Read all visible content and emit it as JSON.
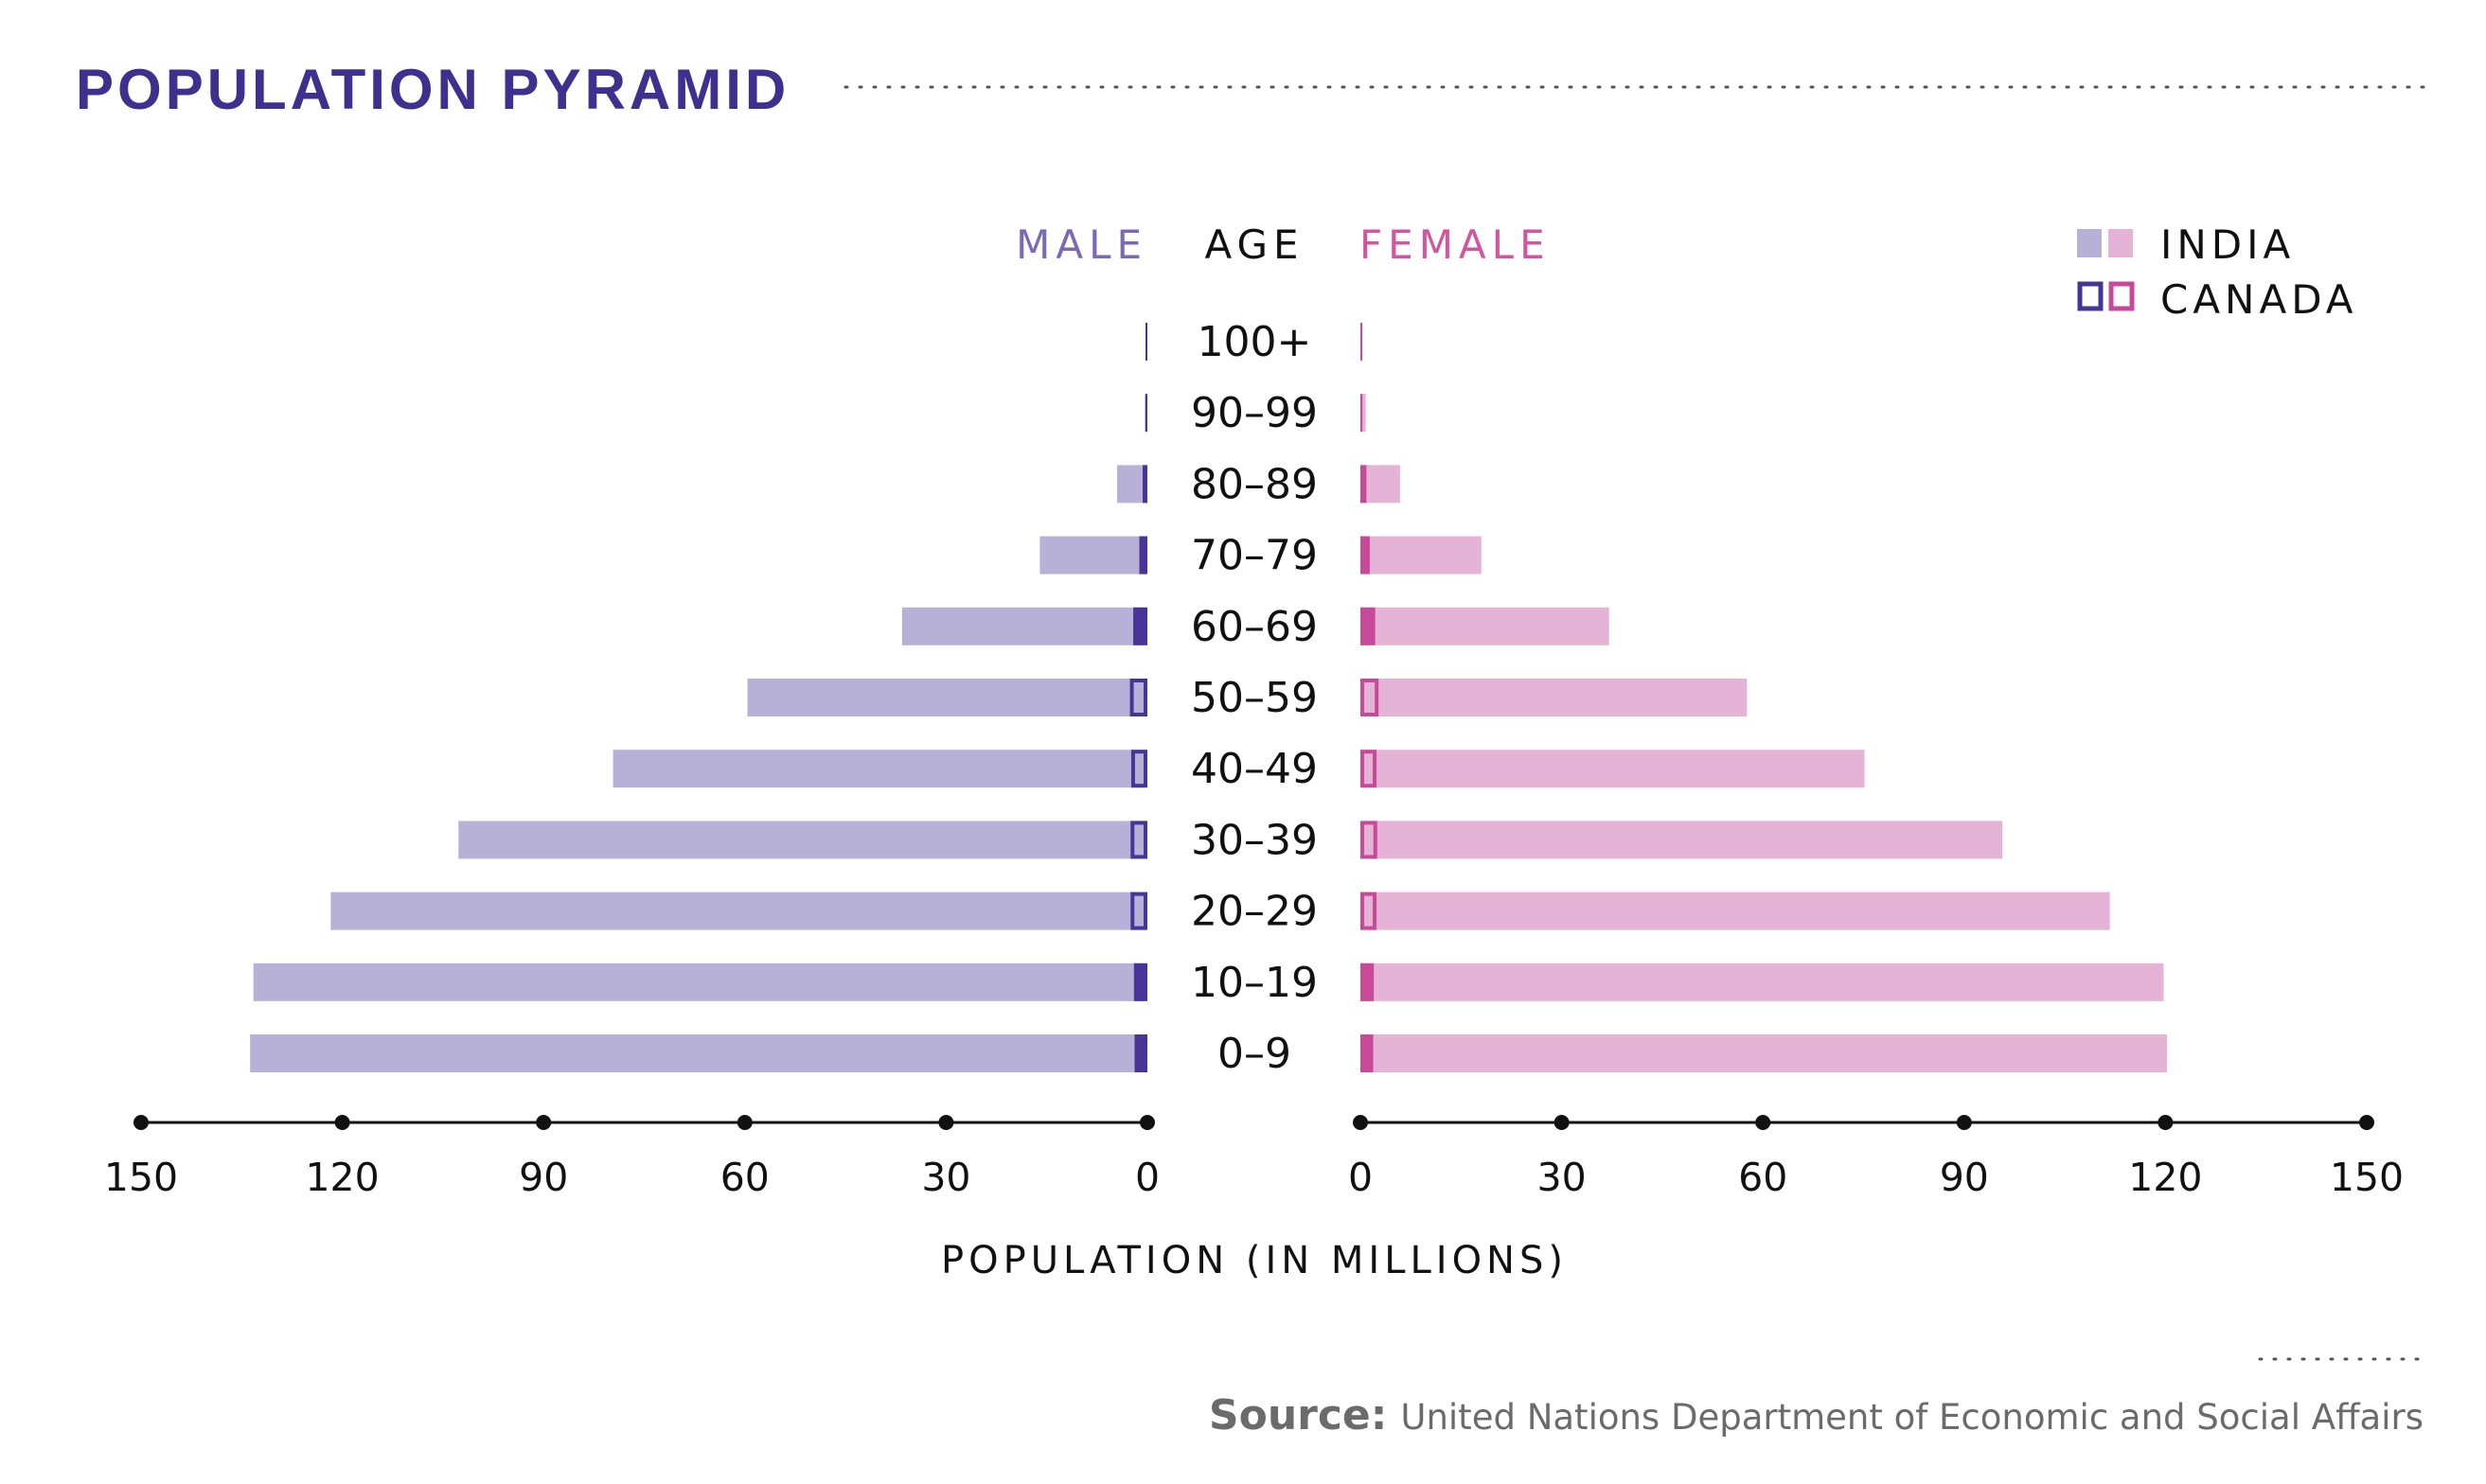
{
  "title": "POPULATION PYRAMID",
  "colors": {
    "title": "#3f2f8e",
    "male_india": "#b7b1d8",
    "male_canada": "#463597",
    "female_india": "#e5b3d5",
    "female_canada": "#c8489a",
    "male_header": "#7b68b8",
    "female_header": "#d2559f",
    "text": "#111111",
    "source": "#6b6b6b",
    "dots": "#555555"
  },
  "headers": {
    "male": "MALE",
    "age": "AGE",
    "female": "FEMALE"
  },
  "legend": {
    "items": [
      {
        "label": "INDIA",
        "style": "filled"
      },
      {
        "label": "CANADA",
        "style": "outline"
      }
    ]
  },
  "source": {
    "label": "Source:",
    "text": "United Nations Department of Economic and Social Affairs"
  },
  "chart_data": {
    "type": "bar",
    "subtype": "population-pyramid",
    "title": "POPULATION PYRAMID",
    "xlabel": "POPULATION (IN MILLIONS)",
    "ylabel": "AGE",
    "xlim": [
      0,
      150
    ],
    "ticks": [
      "0",
      "30",
      "60",
      "90",
      "120",
      "150"
    ],
    "tick_values": [
      0,
      30,
      60,
      90,
      120,
      150
    ],
    "categories": [
      "100+",
      "90–99",
      "80–89",
      "70–79",
      "60–69",
      "50–59",
      "40–49",
      "30–39",
      "20–29",
      "10–19",
      "0–9"
    ],
    "series": [
      {
        "name": "MALE · INDIA",
        "side": "male",
        "country": "INDIA",
        "values": [
          0.2,
          0.4,
          4.5,
          16,
          36.5,
          59.5,
          79.5,
          102.5,
          121.5,
          133,
          133.5
        ]
      },
      {
        "name": "FEMALE · INDIA",
        "side": "female",
        "country": "INDIA",
        "values": [
          0.3,
          0.8,
          5.9,
          18,
          37,
          57.5,
          75,
          95.5,
          111.5,
          119.5,
          120
        ]
      },
      {
        "name": "MALE · CANADA",
        "side": "male",
        "country": "CANADA",
        "values": [
          0.05,
          0.2,
          0.7,
          1.2,
          2.1,
          2.6,
          2.4,
          2.5,
          2.5,
          2,
          1.9
        ]
      },
      {
        "name": "FEMALE · CANADA",
        "side": "female",
        "country": "CANADA",
        "values": [
          0.05,
          0.3,
          0.9,
          1.4,
          2.2,
          2.7,
          2.4,
          2.5,
          2.4,
          2,
          1.9
        ]
      }
    ],
    "legend_position": "top-right",
    "grid": false
  }
}
